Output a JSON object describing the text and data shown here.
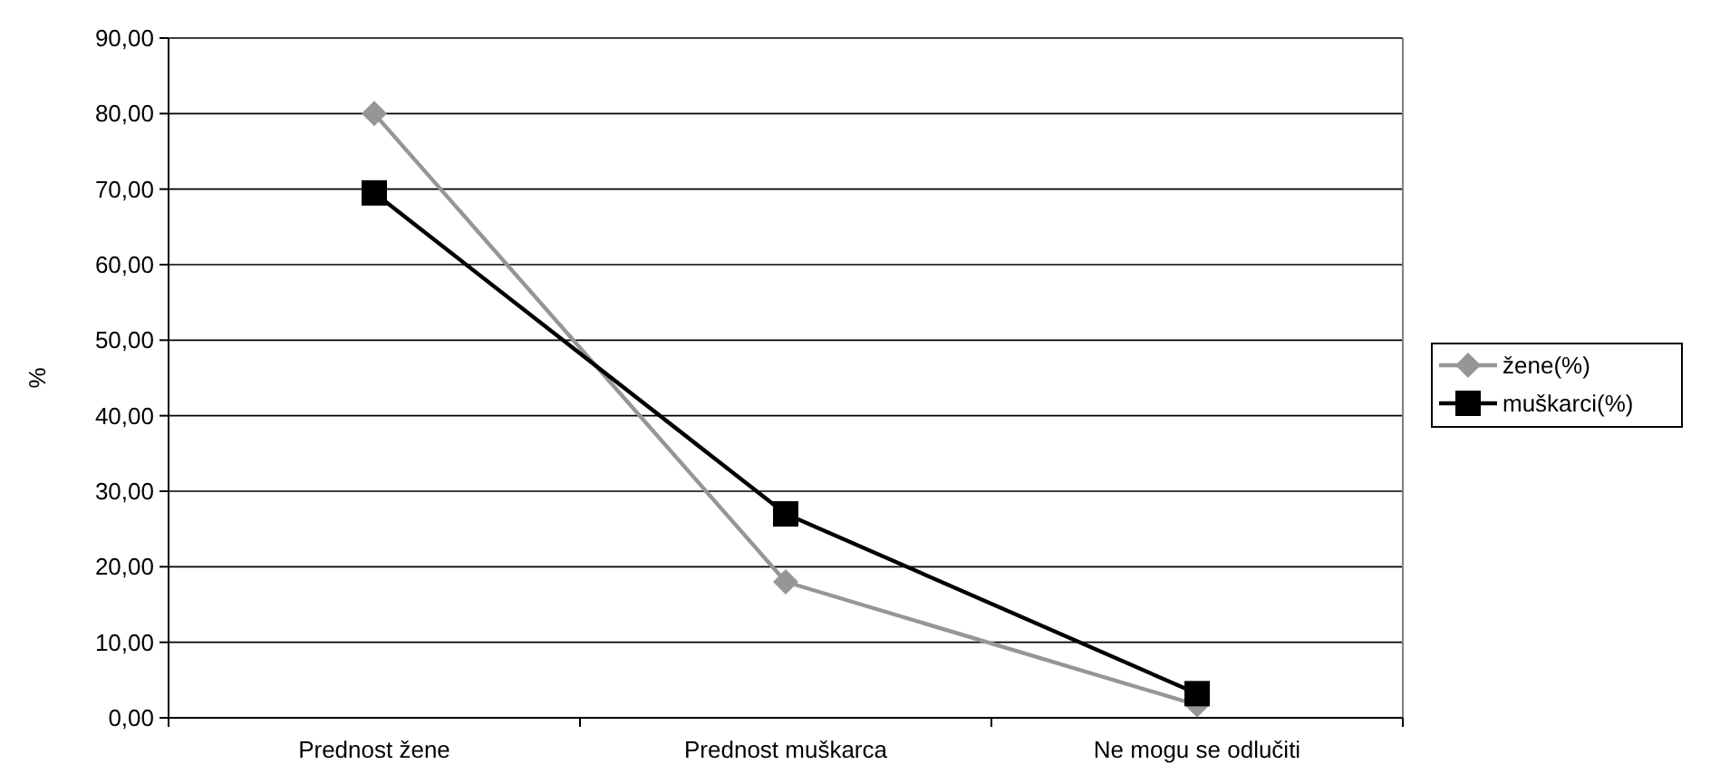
{
  "chart_data": {
    "type": "line",
    "ylabel": "%",
    "categories": [
      "Prednost žene",
      "Prednost muškarca",
      "Ne mogu se odlučiti"
    ],
    "series": [
      {
        "name": "žene(%)",
        "color": "#969696",
        "marker": "diamond",
        "values": [
          80,
          18,
          1.7
        ]
      },
      {
        "name": "muškarci(%)",
        "color": "#000000",
        "marker": "square",
        "values": [
          69.5,
          27,
          3.2
        ]
      }
    ],
    "ylim": [
      0,
      90
    ],
    "yticks": [
      {
        "value": 0,
        "label": "0,00"
      },
      {
        "value": 10,
        "label": "10,00"
      },
      {
        "value": 20,
        "label": "20,00"
      },
      {
        "value": 30,
        "label": "30,00"
      },
      {
        "value": 40,
        "label": "40,00"
      },
      {
        "value": 50,
        "label": "50,00"
      },
      {
        "value": 60,
        "label": "60,00"
      },
      {
        "value": 70,
        "label": "70,00"
      },
      {
        "value": 80,
        "label": "80,00"
      },
      {
        "value": 90,
        "label": "90,00"
      }
    ],
    "grid": "y",
    "legend": "right",
    "line_style": "solid"
  }
}
